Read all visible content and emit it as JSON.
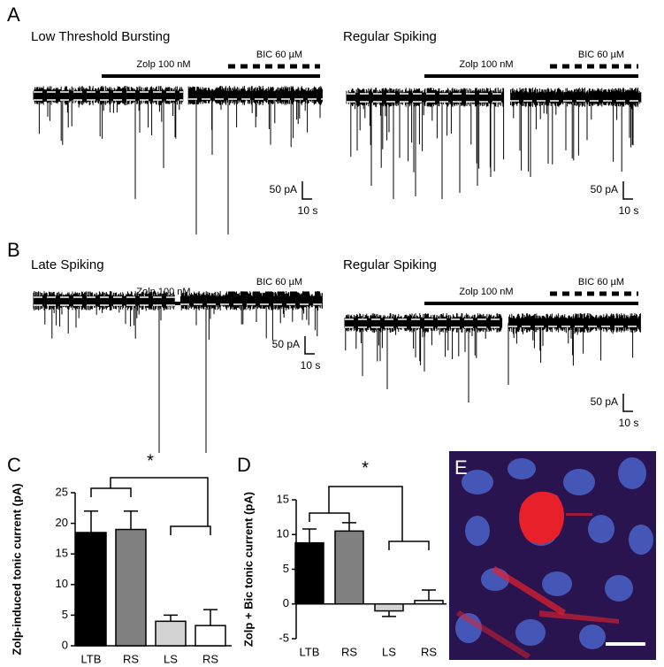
{
  "panel_labels": [
    "A",
    "B",
    "C",
    "D",
    "E"
  ],
  "traces": [
    {
      "title": "Low Threshold Bursting",
      "drug_1": "Zolp 100  nM",
      "drug_2": "BIC 60 µM",
      "scale_current": "50 pA",
      "scale_time": "10 s"
    },
    {
      "title": "Regular Spiking",
      "drug_1": "Zolp 100  nM",
      "drug_2": "BIC 60 µM",
      "scale_current": "50 pA",
      "scale_time": "10 s"
    },
    {
      "title": "Late Spiking",
      "drug_1": "Zolp 100  nM",
      "drug_2": "BIC 60 µM",
      "scale_current": "50 pA",
      "scale_time": "10 s"
    },
    {
      "title": "Regular Spiking",
      "drug_1": "Zolp 100  nM",
      "drug_2": "BIC 60 µM",
      "scale_current": "50 pA",
      "scale_time": "10 s"
    }
  ],
  "chart_data": [
    {
      "type": "bar",
      "ylabel": "Zolp-induced tonic current (pA)",
      "annotation": "*",
      "categories": [
        "LTB",
        "RS",
        "LS",
        "RS"
      ],
      "values": [
        18.5,
        19,
        4,
        3.3
      ],
      "errors": [
        3.5,
        3,
        1,
        2.6
      ],
      "colors": [
        "#000000",
        "#808080",
        "#d3d3d3",
        "#ffffff"
      ],
      "ylim": [
        0,
        25
      ],
      "yticks": [
        0,
        5,
        10,
        15,
        20,
        25
      ]
    },
    {
      "type": "bar",
      "ylabel": "Zolp + Bic tonic current (pA)",
      "annotation": "*",
      "categories": [
        "LTB",
        "RS",
        "LS",
        "RS"
      ],
      "values": [
        8.8,
        10.5,
        -1,
        0.5
      ],
      "errors": [
        2,
        1.2,
        0.8,
        1.5
      ],
      "colors": [
        "#000000",
        "#808080",
        "#d3d3d3",
        "#ffffff"
      ],
      "ylim": [
        -5,
        15
      ],
      "yticks": [
        -5,
        0,
        5,
        10,
        15
      ]
    }
  ]
}
